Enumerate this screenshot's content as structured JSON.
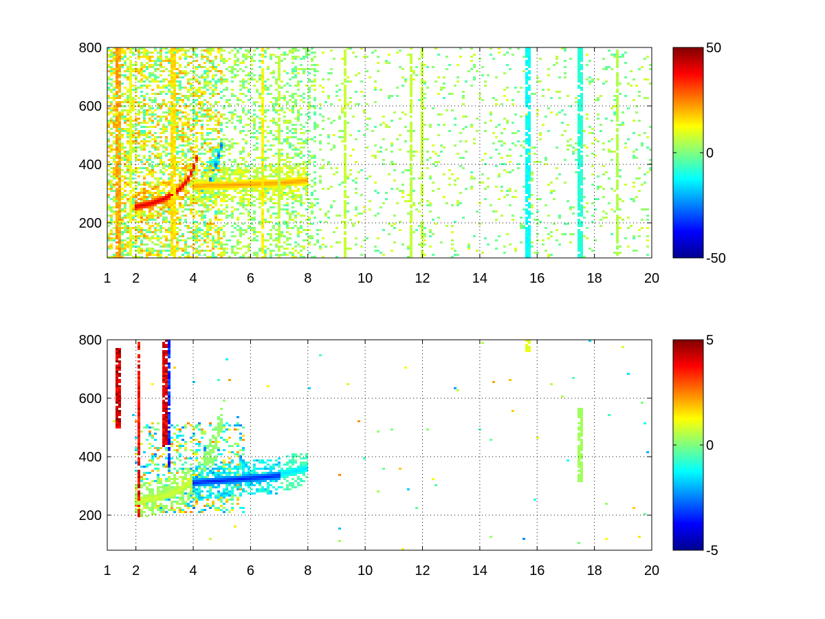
{
  "chart_data": [
    {
      "type": "heatmap",
      "title": "",
      "xlabel": "",
      "ylabel": "",
      "xlim": [
        1,
        20
      ],
      "ylim": [
        80,
        800
      ],
      "x_ticks": [
        {
          "value": 1,
          "label": "1"
        },
        {
          "value": 2,
          "label": "2"
        },
        {
          "value": 4,
          "label": "4"
        },
        {
          "value": 6,
          "label": "6"
        },
        {
          "value": 8,
          "label": "8"
        },
        {
          "value": 10,
          "label": "10"
        },
        {
          "value": 12,
          "label": "12"
        },
        {
          "value": 14,
          "label": "14"
        },
        {
          "value": 16,
          "label": "16"
        },
        {
          "value": 18,
          "label": "18"
        },
        {
          "value": 20,
          "label": "20"
        }
      ],
      "y_ticks": [
        {
          "value": 200,
          "label": "200"
        },
        {
          "value": 400,
          "label": "400"
        },
        {
          "value": 600,
          "label": "600"
        },
        {
          "value": 800,
          "label": "800"
        }
      ],
      "grid": true,
      "colormap": "jet",
      "colorbar": {
        "min": -50,
        "max": 50,
        "ticks": [
          {
            "value": 50,
            "label": "50"
          },
          {
            "value": 0,
            "label": "0"
          },
          {
            "value": -50,
            "label": "-50"
          }
        ]
      },
      "features": {
        "ridges": [
          {
            "x": [
              2.0,
              2.5,
              3.0,
              3.5,
              3.8,
              4.0,
              4.15
            ],
            "y": [
              255,
              265,
              282,
              312,
              345,
              385,
              430
            ],
            "value": 42
          },
          {
            "x": [
              4.0,
              4.5,
              5.0,
              5.5,
              6.0,
              6.5,
              7.0,
              7.5,
              8.0
            ],
            "y": [
              325,
              328,
              328,
              330,
              332,
              334,
              336,
              340,
              345
            ],
            "value": 22
          },
          {
            "x": [
              4.3,
              4.6,
              4.8,
              5.0
            ],
            "y": [
              320,
              350,
              400,
              470
            ],
            "value": -28
          }
        ],
        "vertical_stripes": [
          {
            "x": 1.4,
            "value": 25
          },
          {
            "x": 1.8,
            "value": 12
          },
          {
            "x": 3.3,
            "value": 18
          },
          {
            "x": 6.4,
            "value": 16
          },
          {
            "x": 7.0,
            "value": 8
          },
          {
            "x": 9.3,
            "value": 8
          },
          {
            "x": 11.6,
            "value": 8
          },
          {
            "x": 12.0,
            "value": 8
          },
          {
            "x": 15.7,
            "value": -14
          },
          {
            "x": 17.5,
            "value": -10
          },
          {
            "x": 18.8,
            "value": 6
          }
        ]
      }
    },
    {
      "type": "heatmap",
      "title": "",
      "xlabel": "",
      "ylabel": "",
      "xlim": [
        1,
        20
      ],
      "ylim": [
        80,
        800
      ],
      "x_ticks": [
        {
          "value": 1,
          "label": "1"
        },
        {
          "value": 2,
          "label": "2"
        },
        {
          "value": 4,
          "label": "4"
        },
        {
          "value": 6,
          "label": "6"
        },
        {
          "value": 8,
          "label": "8"
        },
        {
          "value": 10,
          "label": "10"
        },
        {
          "value": 12,
          "label": "12"
        },
        {
          "value": 14,
          "label": "14"
        },
        {
          "value": 16,
          "label": "16"
        },
        {
          "value": 18,
          "label": "18"
        },
        {
          "value": 20,
          "label": "20"
        }
      ],
      "y_ticks": [
        {
          "value": 200,
          "label": "200"
        },
        {
          "value": 400,
          "label": "400"
        },
        {
          "value": 600,
          "label": "600"
        },
        {
          "value": 800,
          "label": "800"
        }
      ],
      "grid": true,
      "colormap": "jet",
      "colorbar": {
        "min": -5,
        "max": 5,
        "ticks": [
          {
            "value": 5,
            "label": "5"
          },
          {
            "value": 0,
            "label": "0"
          },
          {
            "value": -5,
            "label": "-5"
          }
        ]
      },
      "features": {
        "ridges": [
          {
            "x": [
              2.0,
              2.5,
              3.0,
              3.5,
              4.0
            ],
            "y": [
              250,
              255,
              265,
              285,
              320
            ],
            "value": 0.8
          },
          {
            "x": [
              4.0,
              4.5,
              5.0,
              5.5,
              6.0,
              6.5,
              7.0
            ],
            "y": [
              310,
              315,
              318,
              322,
              326,
              330,
              335
            ],
            "value": -3.5
          },
          {
            "x": [
              7.0,
              7.5,
              8.0
            ],
            "y": [
              340,
              350,
              360
            ],
            "value": -1.5
          },
          {
            "x": [
              4.2,
              4.5,
              4.8,
              5.0
            ],
            "y": [
              320,
              380,
              450,
              520
            ],
            "value": 0.3
          }
        ],
        "vertical_stripes": [
          {
            "x": 1.4,
            "y": [
              500,
              770
            ],
            "value": 5
          },
          {
            "x": 2.1,
            "y": [
              190,
              790
            ],
            "value": 4.5
          },
          {
            "x": 3.0,
            "y": [
              430,
              800
            ],
            "value": 4.8
          },
          {
            "x": 3.1,
            "y": [
              360,
              800
            ],
            "value": -4
          },
          {
            "x": 15.7,
            "y": [
              760,
              800
            ],
            "value": 1.2
          },
          {
            "x": 17.5,
            "y": [
              310,
              565
            ],
            "value": 0.4
          }
        ]
      }
    }
  ]
}
